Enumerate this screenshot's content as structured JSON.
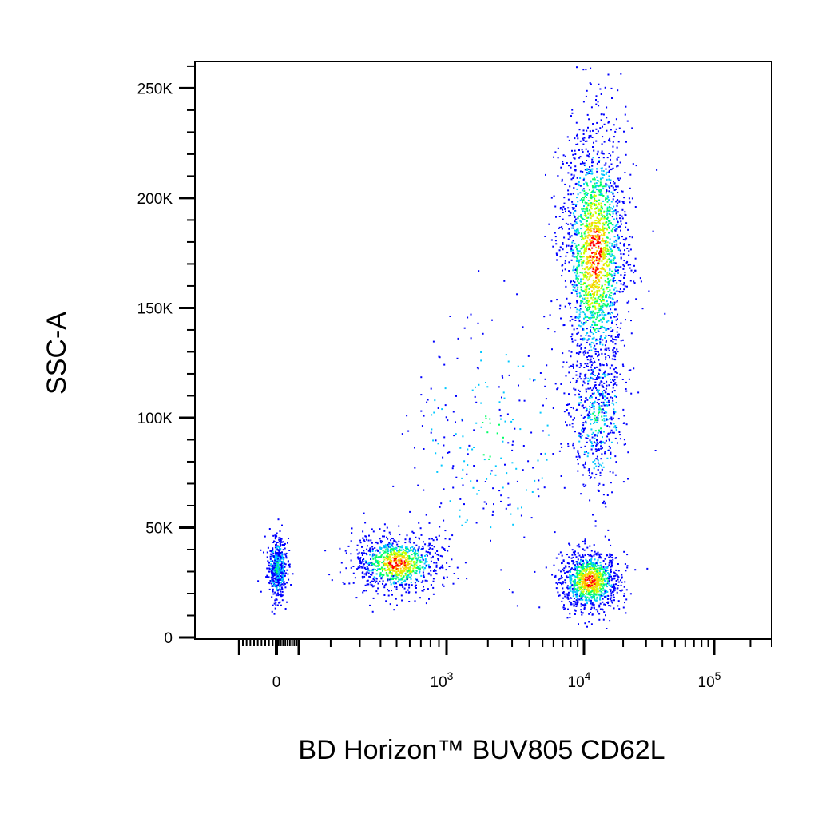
{
  "chart_data": {
    "type": "scatter",
    "subtype": "flow-cytometry-density-dot-plot",
    "xlabel": "BD Horizon™ BUV805 CD62L",
    "ylabel": "SSC-A",
    "x_scale": "biexponential",
    "x_range": [
      -150,
      300000
    ],
    "y_range": [
      0,
      262144
    ],
    "x_ticks": [
      {
        "value": 0,
        "base": "0",
        "exp": ""
      },
      {
        "value": 1000,
        "base": "10",
        "exp": "3"
      },
      {
        "value": 10000,
        "base": "10",
        "exp": "4"
      },
      {
        "value": 100000,
        "base": "10",
        "exp": "5"
      }
    ],
    "y_ticks": [
      {
        "value": 0,
        "label": "0"
      },
      {
        "value": 50000,
        "label": "50K"
      },
      {
        "value": 100000,
        "label": "100K"
      },
      {
        "value": 150000,
        "label": "150K"
      },
      {
        "value": 200000,
        "label": "200K"
      },
      {
        "value": 250000,
        "label": "250K"
      }
    ],
    "grid": false,
    "legend": "none",
    "color_scale": [
      "#0000ff",
      "#00c8ff",
      "#00ff66",
      "#ccff00",
      "#ffcc00",
      "#ff0000"
    ],
    "populations": [
      {
        "x_center": 0,
        "x_spread": 0.035,
        "y_center": 32000,
        "y_spread": 7000,
        "density": 0.1
      },
      {
        "x_center": 500,
        "x_spread": 0.16,
        "y_center": 34000,
        "y_spread": 6500,
        "density": 0.18
      },
      {
        "x_center": 11000,
        "x_spread": 0.11,
        "y_center": 26000,
        "y_spread": 7000,
        "density": 0.2
      },
      {
        "x_center": 12000,
        "x_spread": 0.12,
        "y_center": 175000,
        "y_spread": 30000,
        "density": 0.38
      },
      {
        "x_center": 12500,
        "x_spread": 0.1,
        "y_center": 100000,
        "y_spread": 16000,
        "density": 0.09
      },
      {
        "x_center": 2000,
        "x_spread": 0.3,
        "y_center": 90000,
        "y_spread": 30000,
        "density": 0.05
      }
    ]
  }
}
